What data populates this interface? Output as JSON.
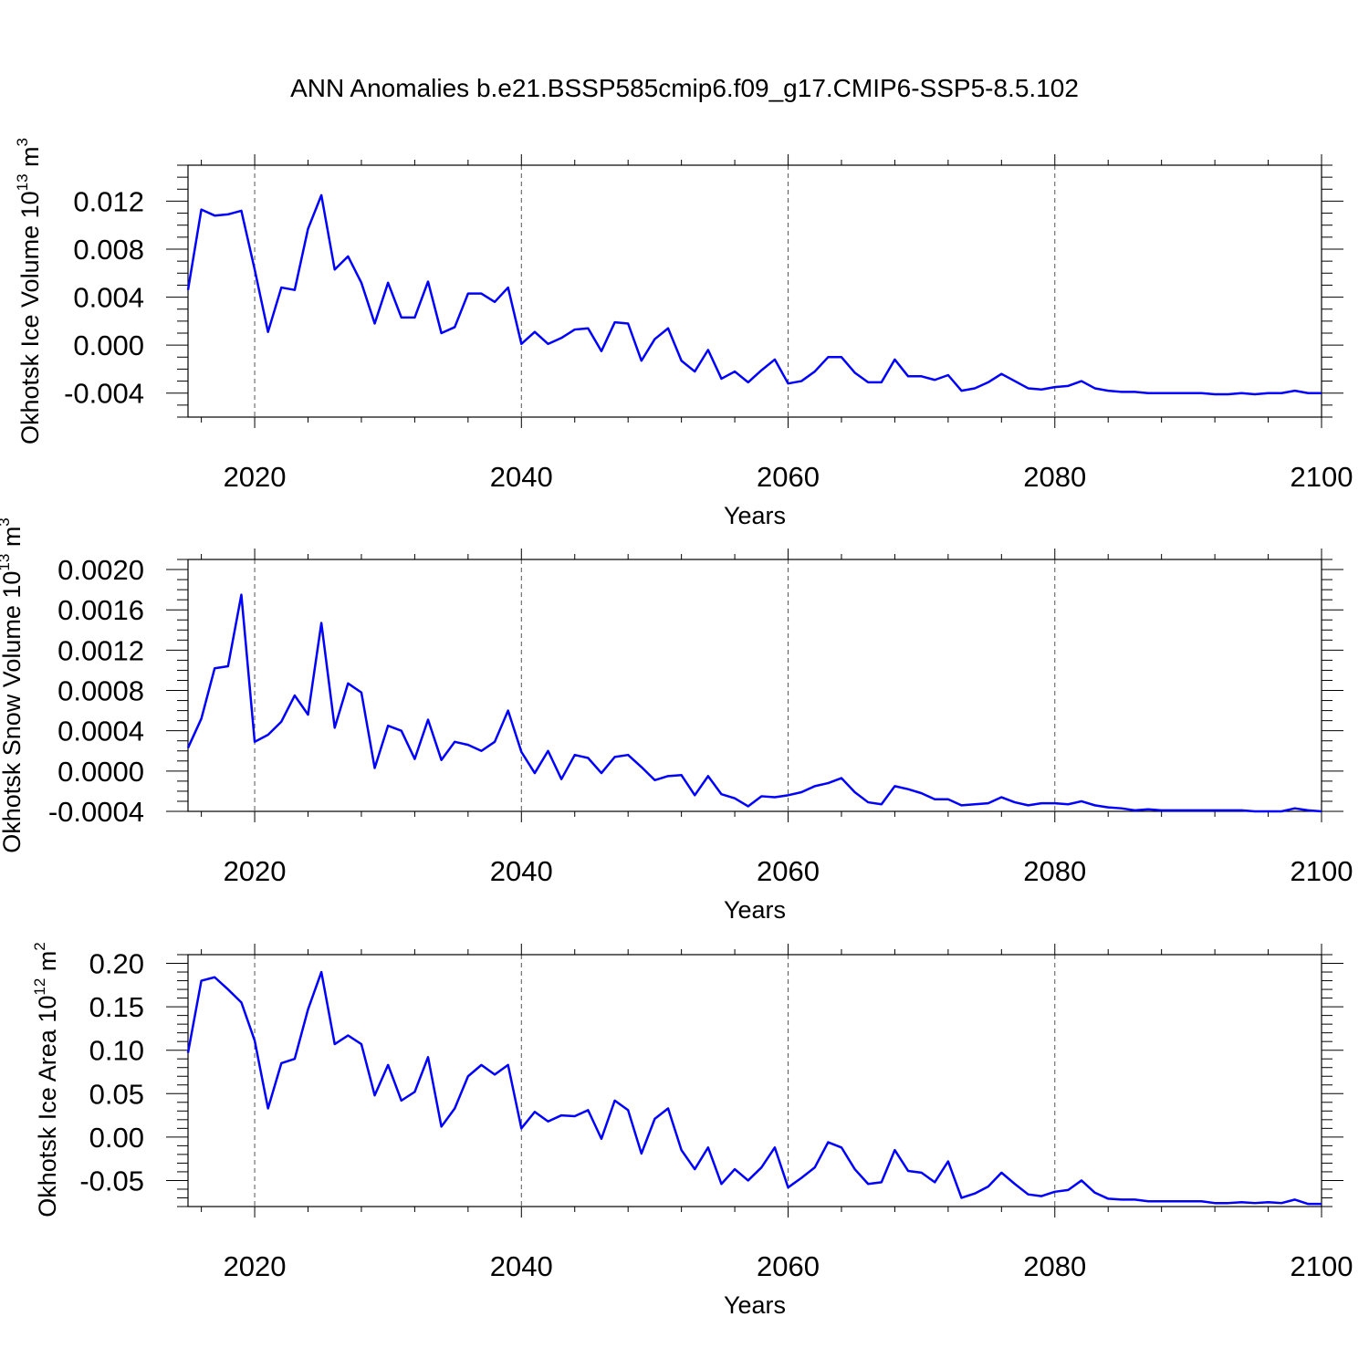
{
  "title": "ANN Anomalies b.e21.BSSP585cmip6.f09_g17.CMIP6-SSP5-8.5.102",
  "colors": {
    "line": "#0000ff",
    "axis": "#000000",
    "refline": "#555555"
  },
  "chart_data": [
    {
      "type": "line",
      "ylabel": {
        "prefix": "Okhotsk Ice Volume 10",
        "exponent": "13",
        "unit_base": " m",
        "unit_exp": "3"
      },
      "xlabel": "Years",
      "xlim": [
        2015,
        2100
      ],
      "ylim": [
        -0.006,
        0.015
      ],
      "x_ticks": [
        "2020",
        "2040",
        "2060",
        "2080",
        "2100"
      ],
      "y_ticks": [
        {
          "value": -0.004,
          "label": "-0.004"
        },
        {
          "value": 0.0,
          "label": "0.000"
        },
        {
          "value": 0.004,
          "label": "0.004"
        },
        {
          "value": 0.008,
          "label": "0.008"
        },
        {
          "value": 0.012,
          "label": "0.012"
        }
      ],
      "y_minor_step": 0.001,
      "x_start": 2015,
      "series": [
        {
          "values": [
            0.0046,
            0.0113,
            0.0108,
            0.0109,
            0.0112,
            0.0063,
            0.0011,
            0.0048,
            0.0046,
            0.0097,
            0.0125,
            0.0063,
            0.0074,
            0.0052,
            0.0018,
            0.0052,
            0.0023,
            0.0023,
            0.0053,
            0.001,
            0.0015,
            0.0043,
            0.0043,
            0.0036,
            0.0048,
            0.0001,
            0.0011,
            0.0001,
            0.0006,
            0.0013,
            0.0014,
            -0.0005,
            0.0019,
            0.0018,
            -0.0013,
            0.0005,
            0.0014,
            -0.0013,
            -0.0022,
            -0.0004,
            -0.0028,
            -0.0022,
            -0.0031,
            -0.0021,
            -0.0012,
            -0.0032,
            -0.003,
            -0.0022,
            -0.001,
            -0.001,
            -0.0023,
            -0.0031,
            -0.0031,
            -0.0012,
            -0.0026,
            -0.0026,
            -0.0029,
            -0.0025,
            -0.0038,
            -0.0036,
            -0.0031,
            -0.0024,
            -0.003,
            -0.0036,
            -0.0037,
            -0.0035,
            -0.0034,
            -0.003,
            -0.0036,
            -0.0038,
            -0.0039,
            -0.0039,
            -0.004,
            -0.004,
            -0.004,
            -0.004,
            -0.004,
            -0.0041,
            -0.0041,
            -0.004,
            -0.0041,
            -0.004,
            -0.004,
            -0.0038,
            -0.004,
            -0.004
          ]
        }
      ]
    },
    {
      "type": "line",
      "ylabel": {
        "prefix": "Okhotsk Snow Volume 10",
        "exponent": "13",
        "unit_base": " m",
        "unit_exp": "3"
      },
      "xlabel": "Years",
      "xlim": [
        2015,
        2100
      ],
      "ylim": [
        -0.0004,
        0.0021
      ],
      "x_ticks": [
        "2020",
        "2040",
        "2060",
        "2080",
        "2100"
      ],
      "y_ticks": [
        {
          "value": -0.0004,
          "label": "-0.0004"
        },
        {
          "value": 0.0,
          "label": "0.0000"
        },
        {
          "value": 0.0004,
          "label": "0.0004"
        },
        {
          "value": 0.0008,
          "label": "0.0008"
        },
        {
          "value": 0.0012,
          "label": "0.0012"
        },
        {
          "value": 0.0016,
          "label": "0.0016"
        },
        {
          "value": 0.002,
          "label": "0.0020"
        }
      ],
      "y_minor_step": 0.0001,
      "x_start": 2015,
      "series": [
        {
          "values": [
            0.00023,
            0.00052,
            0.00102,
            0.00104,
            0.00175,
            0.00029,
            0.00036,
            0.00049,
            0.00075,
            0.00056,
            0.00147,
            0.00043,
            0.00087,
            0.00078,
            3e-05,
            0.00045,
            0.0004,
            0.00012,
            0.00051,
            0.00011,
            0.00029,
            0.00026,
            0.0002,
            0.00029,
            0.0006,
            0.00019,
            -2e-05,
            0.0002,
            -8e-05,
            0.00016,
            0.00013,
            -2e-05,
            0.00014,
            0.00016,
            4e-05,
            -9e-05,
            -5e-05,
            -4e-05,
            -0.00024,
            -5e-05,
            -0.00023,
            -0.00027,
            -0.00035,
            -0.00025,
            -0.00026,
            -0.00024,
            -0.00021,
            -0.00015,
            -0.00012,
            -7e-05,
            -0.00021,
            -0.00031,
            -0.00033,
            -0.00015,
            -0.00018,
            -0.00022,
            -0.00028,
            -0.00028,
            -0.00034,
            -0.00033,
            -0.00032,
            -0.00026,
            -0.00031,
            -0.00034,
            -0.00032,
            -0.00032,
            -0.00033,
            -0.0003,
            -0.00034,
            -0.00036,
            -0.00037,
            -0.00039,
            -0.00038,
            -0.00039,
            -0.00039,
            -0.00039,
            -0.00039,
            -0.00039,
            -0.00039,
            -0.00039,
            -0.0004,
            -0.0004,
            -0.0004,
            -0.00037,
            -0.00039,
            -0.0004
          ]
        }
      ]
    },
    {
      "type": "line",
      "ylabel": {
        "prefix": "Okhotsk Ice Area 10",
        "exponent": "12",
        "unit_base": " m",
        "unit_exp": "2"
      },
      "xlabel": "Years",
      "xlim": [
        2015,
        2100
      ],
      "ylim": [
        -0.08,
        0.21
      ],
      "x_ticks": [
        "2020",
        "2040",
        "2060",
        "2080",
        "2100"
      ],
      "y_ticks": [
        {
          "value": -0.05,
          "label": "-0.05"
        },
        {
          "value": 0.0,
          "label": "0.00"
        },
        {
          "value": 0.05,
          "label": "0.05"
        },
        {
          "value": 0.1,
          "label": "0.10"
        },
        {
          "value": 0.15,
          "label": "0.15"
        },
        {
          "value": 0.2,
          "label": "0.20"
        }
      ],
      "y_minor_step": 0.01,
      "x_start": 2015,
      "series": [
        {
          "values": [
            0.097,
            0.18,
            0.184,
            0.17,
            0.155,
            0.111,
            0.033,
            0.085,
            0.09,
            0.147,
            0.19,
            0.107,
            0.117,
            0.107,
            0.048,
            0.083,
            0.042,
            0.052,
            0.092,
            0.012,
            0.033,
            0.07,
            0.083,
            0.072,
            0.083,
            0.01,
            0.029,
            0.018,
            0.025,
            0.024,
            0.031,
            -0.002,
            0.042,
            0.031,
            -0.019,
            0.021,
            0.033,
            -0.015,
            -0.037,
            -0.012,
            -0.054,
            -0.037,
            -0.05,
            -0.035,
            -0.012,
            -0.058,
            -0.047,
            -0.035,
            -0.006,
            -0.012,
            -0.037,
            -0.054,
            -0.052,
            -0.015,
            -0.039,
            -0.041,
            -0.052,
            -0.028,
            -0.07,
            -0.065,
            -0.057,
            -0.041,
            -0.054,
            -0.066,
            -0.068,
            -0.063,
            -0.061,
            -0.05,
            -0.064,
            -0.071,
            -0.072,
            -0.072,
            -0.074,
            -0.074,
            -0.074,
            -0.074,
            -0.074,
            -0.076,
            -0.076,
            -0.075,
            -0.076,
            -0.075,
            -0.076,
            -0.072,
            -0.077,
            -0.077
          ]
        }
      ]
    }
  ]
}
